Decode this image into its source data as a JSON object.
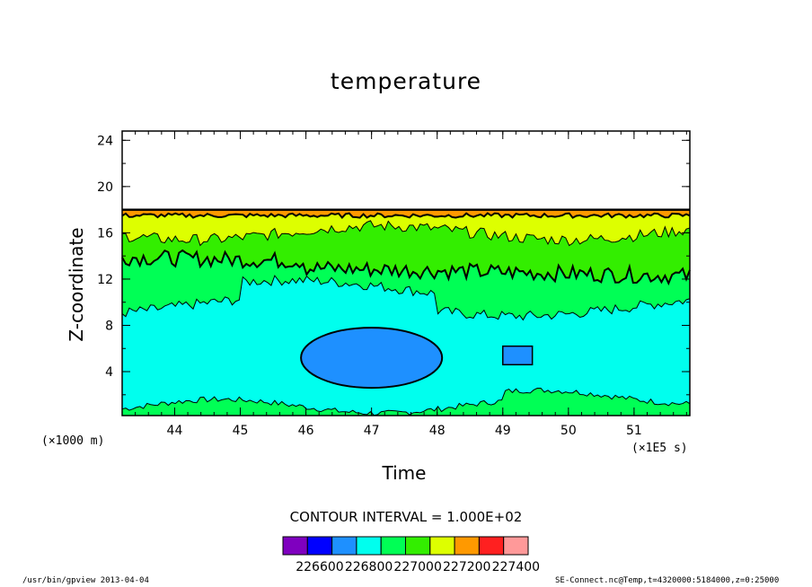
{
  "chart_data": {
    "type": "heatmap",
    "title": "temperature",
    "xlabel": "Time",
    "ylabel": "Z-coordinate",
    "x_unit_note": "(×1E5 s)",
    "y_unit_note": "(×1000 m)",
    "xlim": [
      43.2,
      51.85
    ],
    "ylim": [
      0.2,
      24.8
    ],
    "x_ticks": [
      44,
      45,
      46,
      47,
      48,
      49,
      50,
      51
    ],
    "y_ticks": [
      4,
      8,
      12,
      16,
      20,
      24
    ],
    "contour_interval_label": "CONTOUR INTERVAL = 1.000E+02",
    "colorbar": {
      "colors": [
        "#7f00bf",
        "#0000ff",
        "#1e90ff",
        "#00ffee",
        "#00ff55",
        "#33ee00",
        "#ddff00",
        "#ff9900",
        "#ff2020",
        "#ff9999"
      ],
      "labels": [
        "226600",
        "226800",
        "227000",
        "227200",
        "227400"
      ],
      "boundaries": [
        226500,
        226600,
        226700,
        226800,
        226900,
        227000,
        227100,
        227200,
        227300,
        227400,
        227500
      ]
    },
    "bands_approx": [
      {
        "level": "226700-226800",
        "color": "#1e90ff",
        "x_range": [
          45.9,
          48.1
        ],
        "z_range": [
          2.5,
          7.5
        ]
      },
      {
        "level": "226800-226900",
        "color": "#00ffee",
        "z_range": [
          1.5,
          9.5
        ]
      },
      {
        "level": "226900-227000",
        "color": "#00ff55",
        "z_range": [
          9.5,
          13.5
        ]
      },
      {
        "level": "227000-227100",
        "color": "#33ee00",
        "z_range": [
          13.5,
          16.5
        ]
      },
      {
        "level": "227100-227200",
        "color": "#ddff00",
        "z_range": [
          15.5,
          17.6
        ]
      },
      {
        "level": "227200-227400",
        "color": "#ff9900",
        "z_range": [
          17.6,
          18.1
        ]
      }
    ]
  },
  "footer": {
    "left": "/usr/bin/gpview  2013-04-04",
    "right": "SE-Connect.nc@Temp,t=4320000:5184000,z=0:25000"
  }
}
